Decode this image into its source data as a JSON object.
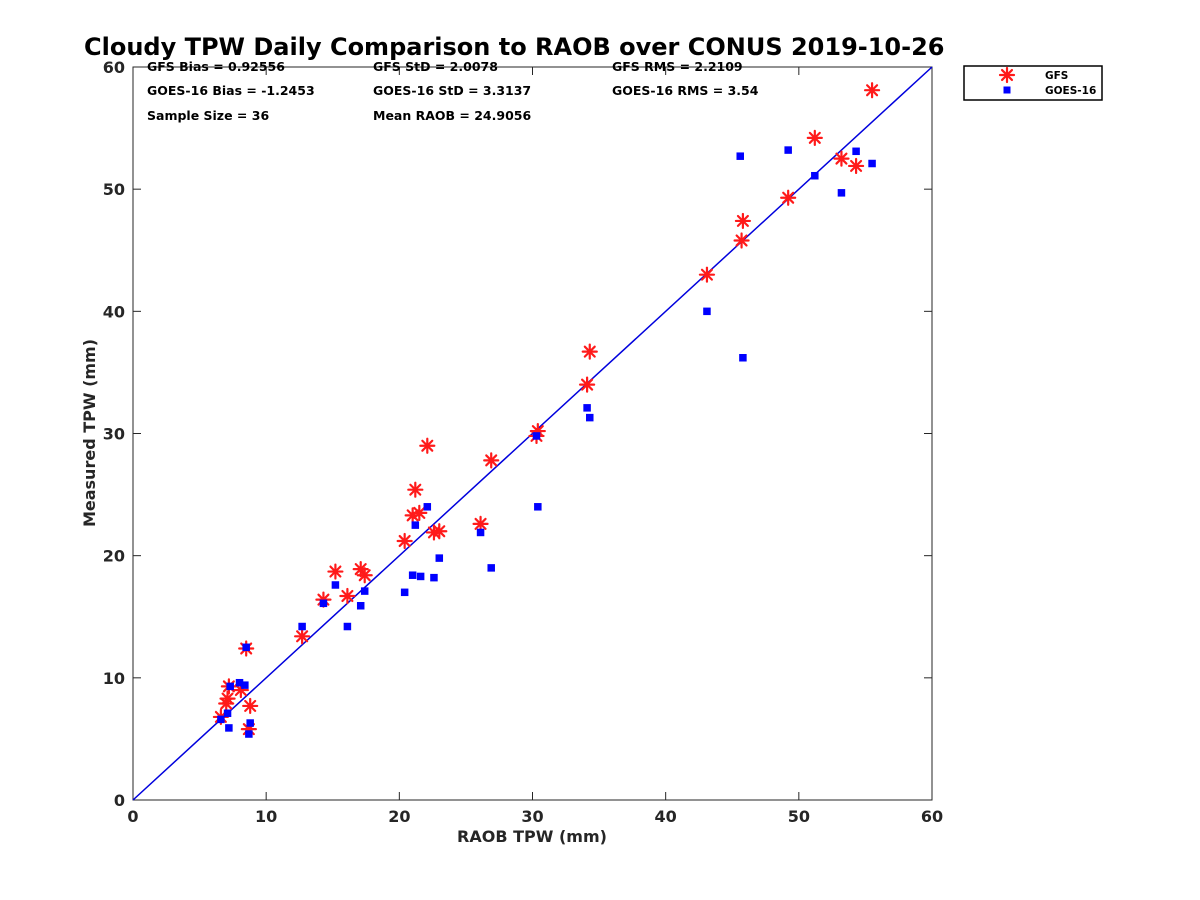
{
  "chart_data": {
    "type": "scatter",
    "title": "Cloudy TPW Daily Comparison to RAOB over CONUS 2019-10-26",
    "xlabel": "RAOB TPW (mm)",
    "ylabel": "Measured TPW (mm)",
    "xlim": [
      0,
      60
    ],
    "ylim": [
      0,
      60
    ],
    "xticks": [
      "0",
      "10",
      "20",
      "30",
      "40",
      "50",
      "60"
    ],
    "yticks": [
      "0",
      "10",
      "20",
      "30",
      "40",
      "50",
      "60"
    ],
    "grid": false,
    "legend_position": "outside top-right",
    "reference_line": {
      "x": [
        0,
        60
      ],
      "y": [
        0,
        60
      ],
      "color": "#0000dd"
    },
    "stats": {
      "gfs_bias": "GFS Bias = 0.92556",
      "gfs_std": "GFS StD = 2.0078",
      "gfs_rms": "GFS RMS = 2.2109",
      "goes_bias": "GOES-16 Bias = -1.2453",
      "goes_std": "GOES-16 StD = 3.3137",
      "goes_rms": "GOES-16 RMS = 3.54",
      "sample_size": "Sample Size = 36",
      "mean_raob": "Mean RAOB = 24.9056"
    },
    "series": [
      {
        "name": "GFS",
        "marker": "asterisk",
        "color": "#ff1a1a",
        "x": [
          6.6,
          7.0,
          7.1,
          7.2,
          8.1,
          8.5,
          8.7,
          8.8,
          12.7,
          14.3,
          15.2,
          16.1,
          17.1,
          17.4,
          20.4,
          21.0,
          21.2,
          21.5,
          22.1,
          22.6,
          23.0,
          26.1,
          26.9,
          30.3,
          30.4,
          34.1,
          34.3,
          43.1,
          45.7,
          45.8,
          49.2,
          51.2,
          53.2,
          54.3,
          55.5
        ],
        "y": [
          6.8,
          7.9,
          8.3,
          9.3,
          9.0,
          12.4,
          5.8,
          7.7,
          13.4,
          16.4,
          18.7,
          16.7,
          18.9,
          18.4,
          21.2,
          23.3,
          25.4,
          23.5,
          29.0,
          21.9,
          22.0,
          22.6,
          27.8,
          29.8,
          30.2,
          34.0,
          36.7,
          43.0,
          45.8,
          47.4,
          49.3,
          54.2,
          52.5,
          51.9,
          58.1
        ]
      },
      {
        "name": "GOES-16",
        "marker": "square",
        "color": "#0000ff",
        "x": [
          6.6,
          7.1,
          7.2,
          7.3,
          8.0,
          8.4,
          8.5,
          8.7,
          8.8,
          12.7,
          14.3,
          15.2,
          16.1,
          17.1,
          17.4,
          20.4,
          21.0,
          21.2,
          21.6,
          22.1,
          22.6,
          23.0,
          26.1,
          26.9,
          30.3,
          30.4,
          34.1,
          34.3,
          43.1,
          45.6,
          45.8,
          49.2,
          51.2,
          53.2,
          54.3,
          55.5
        ],
        "y": [
          6.6,
          7.1,
          5.9,
          9.3,
          9.6,
          9.4,
          12.5,
          5.4,
          6.3,
          14.2,
          16.1,
          17.6,
          14.2,
          15.9,
          17.1,
          17.0,
          18.4,
          22.5,
          18.3,
          24.0,
          18.2,
          19.8,
          21.9,
          19.0,
          29.8,
          24.0,
          32.1,
          31.3,
          40.0,
          52.7,
          36.2,
          53.2,
          51.1,
          49.7,
          53.1,
          52.1
        ]
      }
    ]
  }
}
